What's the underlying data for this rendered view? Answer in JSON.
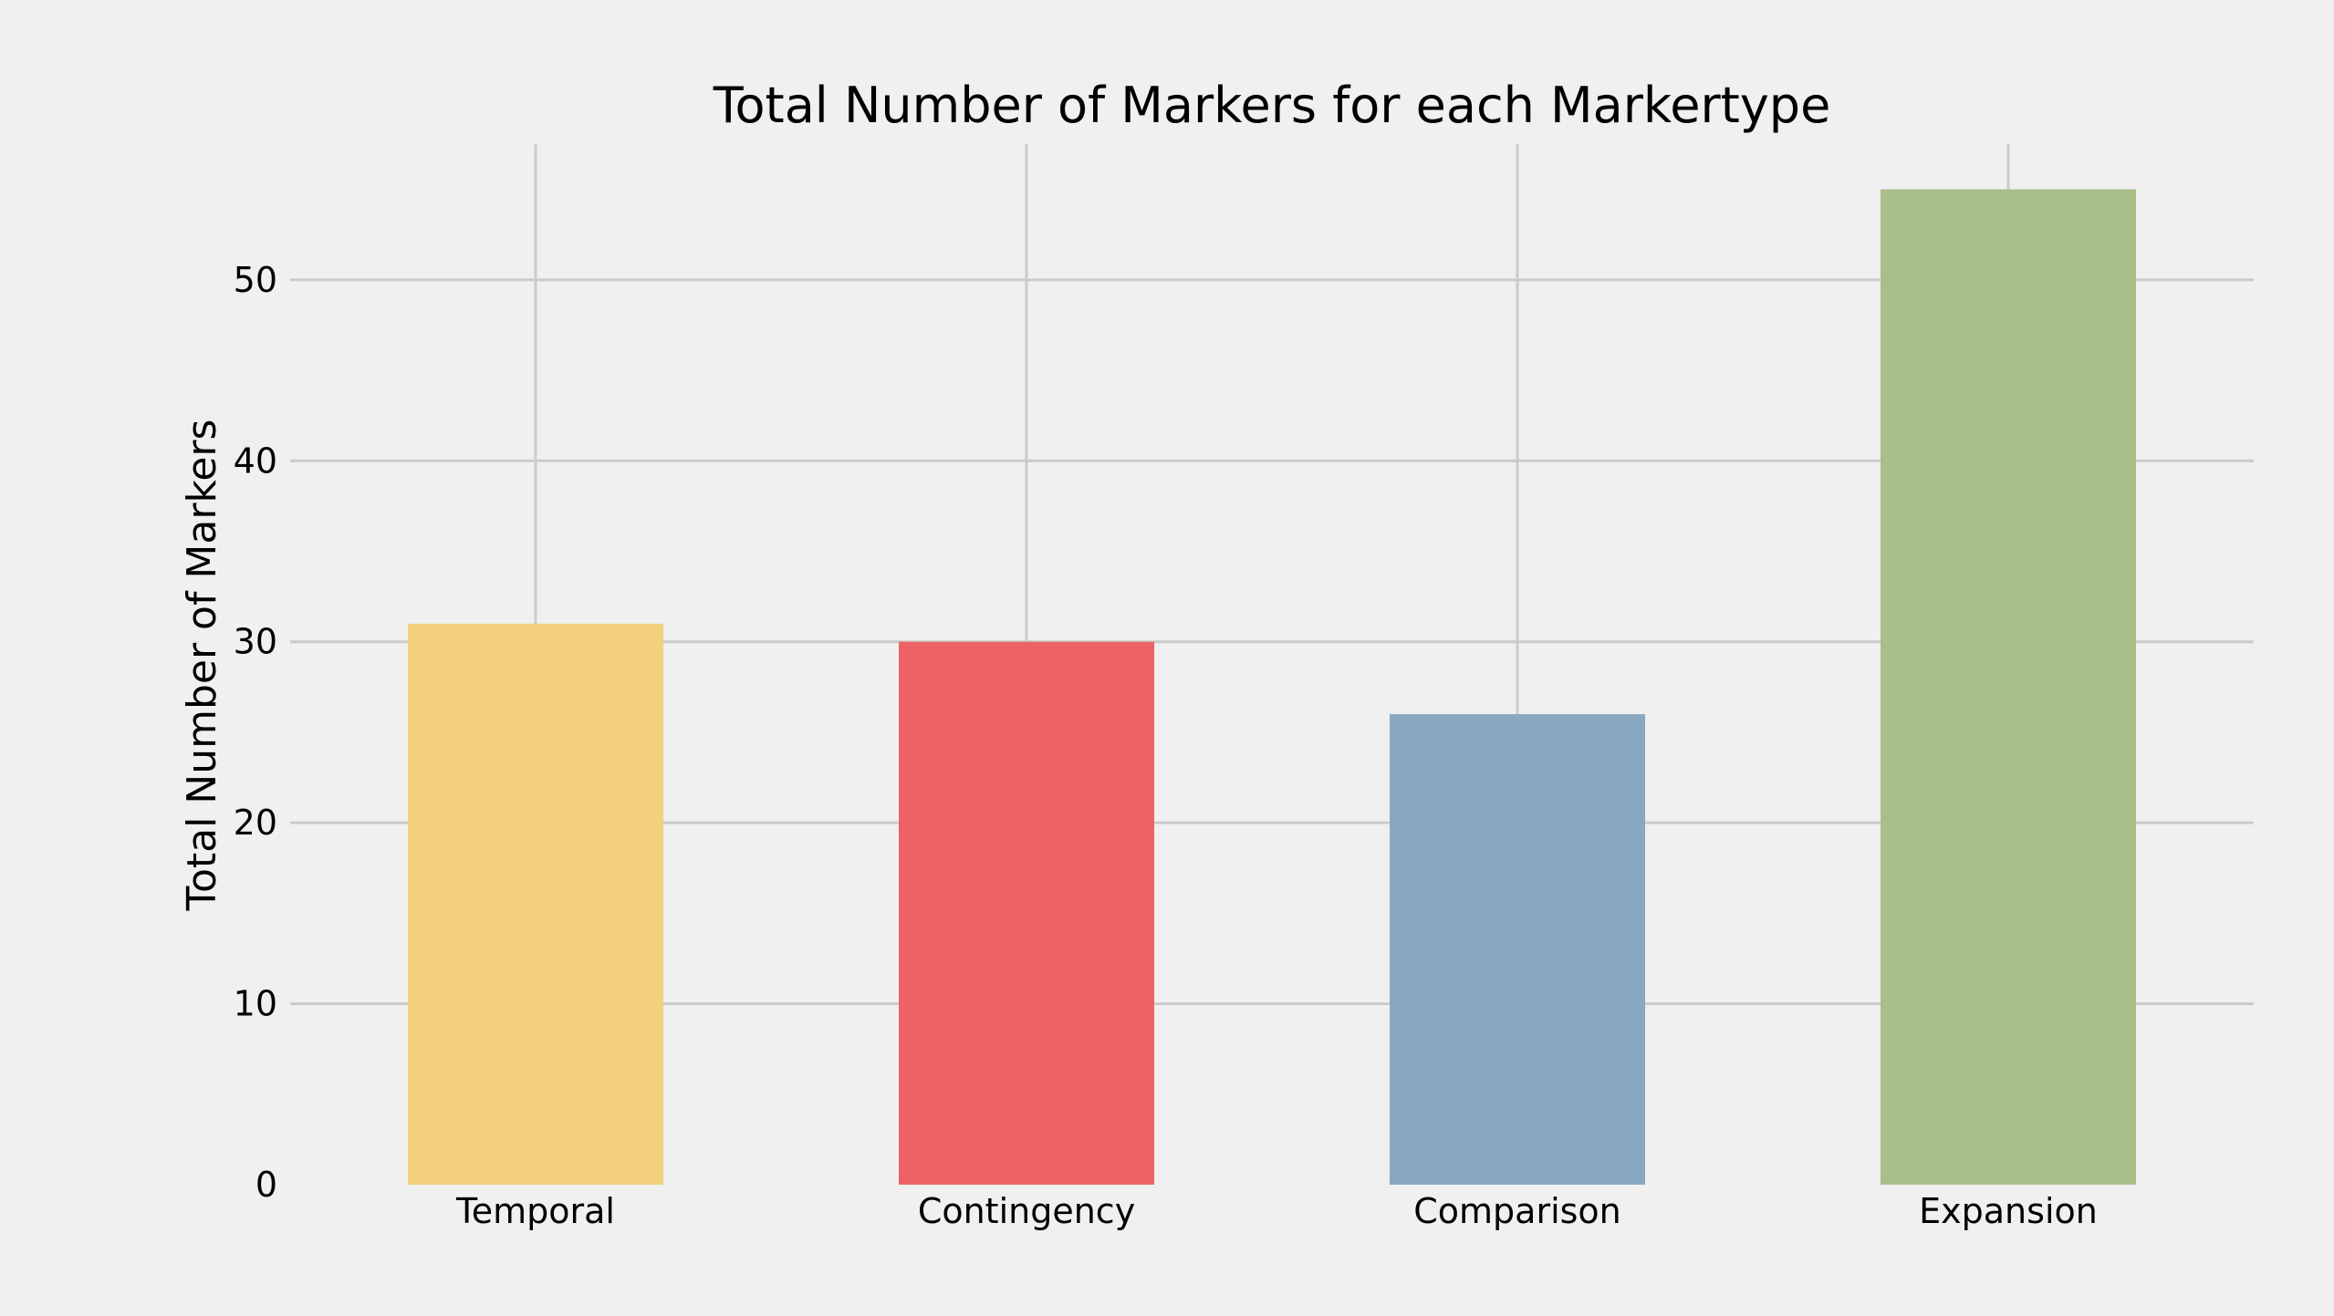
{
  "chart_data": {
    "type": "bar",
    "title": "Total Number of Markers for each Markertype",
    "xlabel": "",
    "ylabel": "Total Number of Markers",
    "categories": [
      "Temporal",
      "Contingency",
      "Comparison",
      "Expansion"
    ],
    "values": [
      31,
      30,
      26,
      55
    ],
    "colors": [
      "#f3d07b",
      "#ec6265",
      "#8aa8c1",
      "#a8bf89"
    ],
    "yticks": [
      "0",
      "10",
      "20",
      "30",
      "40",
      "50"
    ],
    "ylim": [
      0,
      57.5
    ],
    "grid": true,
    "legend": "none",
    "background": "#f0f0f0",
    "grid_color": "#cbcbcb"
  }
}
